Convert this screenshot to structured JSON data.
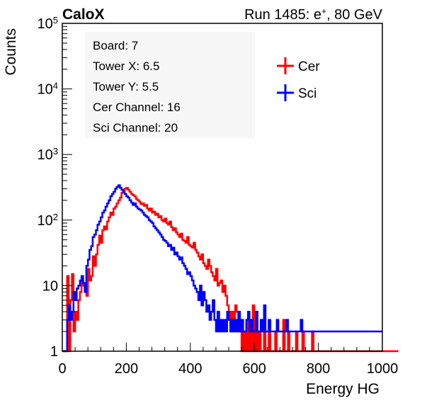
{
  "header": {
    "experiment": "CaloX",
    "run_label": "Run 1485: e",
    "run_superscript": "+",
    "run_suffix": ", 80 GeV"
  },
  "info_box": {
    "board": "Board: 7",
    "tower_x": "Tower X: 6.5",
    "tower_y": "Tower Y: 5.5",
    "cer_channel": "Cer Channel: 16",
    "sci_channel": "Sci Channel: 20"
  },
  "chart_data": {
    "type": "line",
    "xlabel": "Energy HG",
    "ylabel": "Counts",
    "xlim": [
      0,
      1000
    ],
    "ylim": [
      1,
      100000
    ],
    "yscale": "log",
    "x_ticks": [
      "0",
      "200",
      "400",
      "600",
      "800",
      "1000"
    ],
    "y_ticks": [
      {
        "value": 1,
        "label": "1",
        "sup": ""
      },
      {
        "value": 10,
        "label": "10",
        "sup": ""
      },
      {
        "value": 100,
        "label": "10",
        "sup": "2"
      },
      {
        "value": 1000,
        "label": "10",
        "sup": "3"
      },
      {
        "value": 10000,
        "label": "10",
        "sup": "4"
      },
      {
        "value": 100000,
        "label": "10",
        "sup": "5"
      }
    ],
    "legend_position": "top-right",
    "grid": false,
    "bin_width": 5,
    "series": [
      {
        "name": "Cer",
        "color": "#ff0000",
        "values": [
          0,
          0,
          1,
          14,
          1,
          6,
          15,
          2,
          4,
          3,
          6,
          8,
          12,
          10,
          9,
          7,
          18,
          12,
          14,
          28,
          20,
          30,
          42,
          58,
          45,
          70,
          80,
          72,
          95,
          110,
          130,
          120,
          150,
          160,
          180,
          200,
          220,
          260,
          280,
          300,
          310,
          290,
          270,
          250,
          240,
          230,
          210,
          200,
          190,
          175,
          180,
          165,
          170,
          150,
          140,
          150,
          130,
          135,
          120,
          125,
          110,
          115,
          100,
          95,
          105,
          90,
          85,
          95,
          78,
          70,
          75,
          65,
          60,
          55,
          62,
          50,
          48,
          45,
          55,
          42,
          40,
          38,
          45,
          35,
          32,
          28,
          25,
          30,
          22,
          20,
          18,
          25,
          20,
          16,
          14,
          12,
          18,
          10,
          11,
          12,
          8,
          10,
          7,
          5,
          4,
          2,
          4,
          3,
          5,
          4,
          2,
          3,
          0,
          2,
          0,
          3,
          0,
          2,
          1,
          5,
          0,
          3,
          1,
          2,
          1,
          0,
          2,
          1,
          0,
          3,
          0,
          1,
          0,
          2,
          0,
          0,
          1,
          0,
          3,
          0,
          0,
          2,
          0,
          1,
          0,
          0,
          2,
          0,
          1,
          0,
          2,
          0,
          0,
          1,
          0,
          0,
          2,
          0,
          0,
          0,
          0,
          0,
          0,
          0,
          0,
          0,
          0,
          0,
          0,
          0,
          0,
          0,
          0,
          0,
          0,
          0,
          0,
          0,
          0,
          0,
          0,
          0,
          0,
          0,
          0,
          0,
          0,
          0,
          0,
          0,
          0,
          0,
          0,
          0,
          0,
          0,
          0,
          0,
          0,
          0,
          0,
          0,
          0,
          0,
          0,
          0,
          0,
          0,
          0,
          0
        ]
      },
      {
        "name": "Sci",
        "color": "#0000ff",
        "values": [
          0,
          0,
          1,
          3,
          5,
          3,
          4,
          8,
          6,
          9,
          10,
          12,
          14,
          11,
          8,
          20,
          25,
          35,
          40,
          55,
          60,
          70,
          85,
          95,
          110,
          130,
          140,
          160,
          180,
          200,
          230,
          250,
          270,
          300,
          320,
          340,
          310,
          290,
          270,
          250,
          230,
          220,
          200,
          185,
          170,
          180,
          160,
          150,
          145,
          140,
          130,
          120,
          115,
          110,
          100,
          95,
          90,
          80,
          75,
          70,
          65,
          60,
          55,
          50,
          48,
          45,
          40,
          42,
          35,
          38,
          30,
          32,
          28,
          25,
          27,
          22,
          20,
          18,
          15,
          16,
          14,
          12,
          10,
          9,
          8,
          6,
          10,
          5,
          8,
          6,
          4,
          5,
          3,
          4,
          6,
          3,
          2,
          4,
          2,
          3,
          2,
          3,
          2,
          4,
          3,
          2,
          3,
          2,
          3,
          2,
          4,
          2,
          3,
          2,
          2,
          3,
          4,
          2,
          3,
          2,
          2,
          4,
          2,
          2,
          3,
          2,
          5,
          2,
          2,
          3,
          2,
          2,
          2,
          2,
          3,
          2,
          2,
          2,
          2,
          2,
          3,
          2,
          2,
          2,
          2,
          2,
          2,
          2,
          2,
          3,
          2,
          2,
          2,
          2,
          2,
          2,
          2,
          2,
          2,
          2,
          2,
          2,
          2,
          2,
          2,
          2,
          2,
          2,
          2,
          2,
          2,
          2,
          2,
          2,
          2,
          2,
          2,
          2,
          2,
          2,
          2,
          2,
          2,
          2,
          2,
          2,
          2,
          2,
          2,
          2,
          2,
          2,
          2,
          2,
          2,
          2,
          2,
          2,
          2,
          2
        ]
      }
    ]
  }
}
